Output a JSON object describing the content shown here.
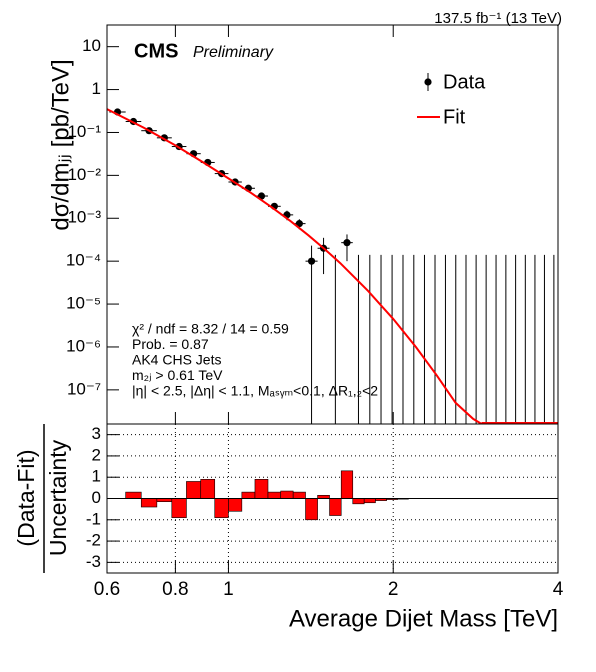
{
  "chart_data": [
    {
      "type": "scatter",
      "lumi_label": "137.5 fb⁻¹ (13 TeV)",
      "cms_label": "CMS",
      "preliminary_label": "Preliminary",
      "y_label": "dσ/dmⱼⱼ [pb/TeV]",
      "annotations": [
        "χ² / ndf = 8.32 / 14 = 0.59",
        "Prob. = 0.87",
        "AK4 CHS Jets",
        "m₂ⱼ > 0.61 TeV",
        "|η| < 2.5, |Δη| < 1.1, Mₐₛᵧₘ<0.1, ΔR₁,₂<2"
      ],
      "log_x": true,
      "log_y": true,
      "legend": "upper right",
      "xlim": [
        0.6,
        4
      ],
      "ylim": [
        1.6e-08,
        32
      ],
      "yticks": [
        10,
        1,
        {
          "value": 0.1,
          "label": "10⁻¹"
        },
        {
          "value": 0.01,
          "label": "10⁻²"
        },
        {
          "value": 0.001,
          "label": "10⁻³"
        },
        {
          "value": 0.0001,
          "label": "10⁻⁴"
        },
        {
          "value": 1e-05,
          "label": "10⁻⁵"
        },
        {
          "value": 1e-06,
          "label": "10⁻⁶"
        },
        {
          "value": 1e-07,
          "label": "10⁻⁷"
        }
      ],
      "bins": [
        0.606,
        0.649,
        0.693,
        0.74,
        0.788,
        0.838,
        0.89,
        0.944,
        1.0,
        1.058,
        1.118,
        1.181,
        1.246,
        1.313,
        1.383,
        1.455,
        1.53,
        1.607,
        1.687,
        1.77,
        1.856,
        1.945,
        2.037,
        2.132,
        2.231,
        2.332,
        2.438,
        2.546,
        2.659,
        2.775,
        2.895,
        3.019,
        3.147,
        3.279,
        3.416,
        3.558,
        3.704,
        3.854,
        4.01
      ],
      "series": [
        {
          "name": "Data",
          "color": "#000000",
          "values": [
            0.3,
            0.18,
            0.11,
            0.075,
            0.047,
            0.032,
            0.02,
            0.011,
            0.007,
            0.005,
            0.0033,
            0.0019,
            0.0012,
            0.00075,
            0.0001,
            0.0002,
            null,
            0.00027,
            null,
            null,
            null,
            null,
            null,
            null,
            null,
            null,
            null,
            null,
            null,
            null,
            null,
            null,
            null,
            null,
            null,
            null,
            null,
            null
          ],
          "err_low": [
            0.03,
            0.018,
            0.011,
            0.0075,
            0.0047,
            0.0032,
            0.002,
            0.0011,
            0.0007,
            0.0005,
            0.0004,
            0.0003,
            0.0003,
            0.0002,
            0.0001,
            0.00015,
            null,
            0.00017,
            null,
            null,
            null,
            null,
            null,
            null,
            null,
            null,
            null,
            null,
            null,
            null,
            null,
            null,
            null,
            null,
            null,
            null,
            null,
            null
          ],
          "err_high": [
            0.03,
            0.018,
            0.011,
            0.0075,
            0.0047,
            0.0032,
            0.002,
            0.0011,
            0.0007,
            0.0005,
            0.0004,
            0.0003,
            0.0003,
            0.0002,
            0.00013,
            0.00015,
            0.00014,
            0.00015,
            0.00014,
            0.00014,
            0.00014,
            0.00014,
            0.00014,
            0.00014,
            0.00014,
            0.00014,
            0.00014,
            0.00014,
            0.00014,
            0.00014,
            0.00014,
            0.00014,
            0.00014,
            0.00014,
            0.00014,
            0.00014,
            0.00014,
            0.00014
          ]
        },
        {
          "name": "Fit",
          "color": "#ff0000",
          "x": [
            0.6,
            0.7,
            0.8,
            0.9,
            1.0,
            1.1,
            1.2,
            1.3,
            1.4,
            1.5,
            1.6,
            1.8,
            2.0,
            2.2,
            2.4,
            2.6,
            2.8,
            2.9
          ],
          "values": [
            0.35,
            0.13,
            0.05,
            0.02,
            0.0085,
            0.0039,
            0.0018,
            0.00085,
            0.0004,
            0.00019,
            9e-05,
            2e-05,
            4.5e-06,
            1e-06,
            2.2e-07,
            5e-08,
            2.1e-08,
            1.6e-08
          ]
        }
      ]
    },
    {
      "type": "bar",
      "y_label_top": "(Data-Fit)",
      "y_label_bottom": "Uncertainty",
      "x_label": "Average Dijet Mass [TeV]",
      "color": "#ff0000",
      "log_x": true,
      "grid": true,
      "xlim": [
        0.6,
        4
      ],
      "ylim": [
        -3.5,
        3.5
      ],
      "xticks": [
        0.6,
        0.8,
        1,
        2,
        4
      ],
      "yticks": [
        -3,
        -2,
        -1,
        0,
        1,
        2,
        3
      ],
      "values": [
        0,
        0.3,
        -0.4,
        -0.15,
        -0.9,
        0.8,
        0.9,
        -0.9,
        -0.6,
        0.3,
        0.9,
        0.3,
        0.35,
        0.3,
        -1.0,
        0.15,
        -0.8,
        1.3,
        -0.25,
        -0.2,
        -0.1,
        -0.05,
        -0.03,
        0,
        0,
        0,
        0,
        0,
        0,
        0,
        0,
        0,
        0,
        0,
        0,
        0,
        0,
        0
      ]
    }
  ]
}
